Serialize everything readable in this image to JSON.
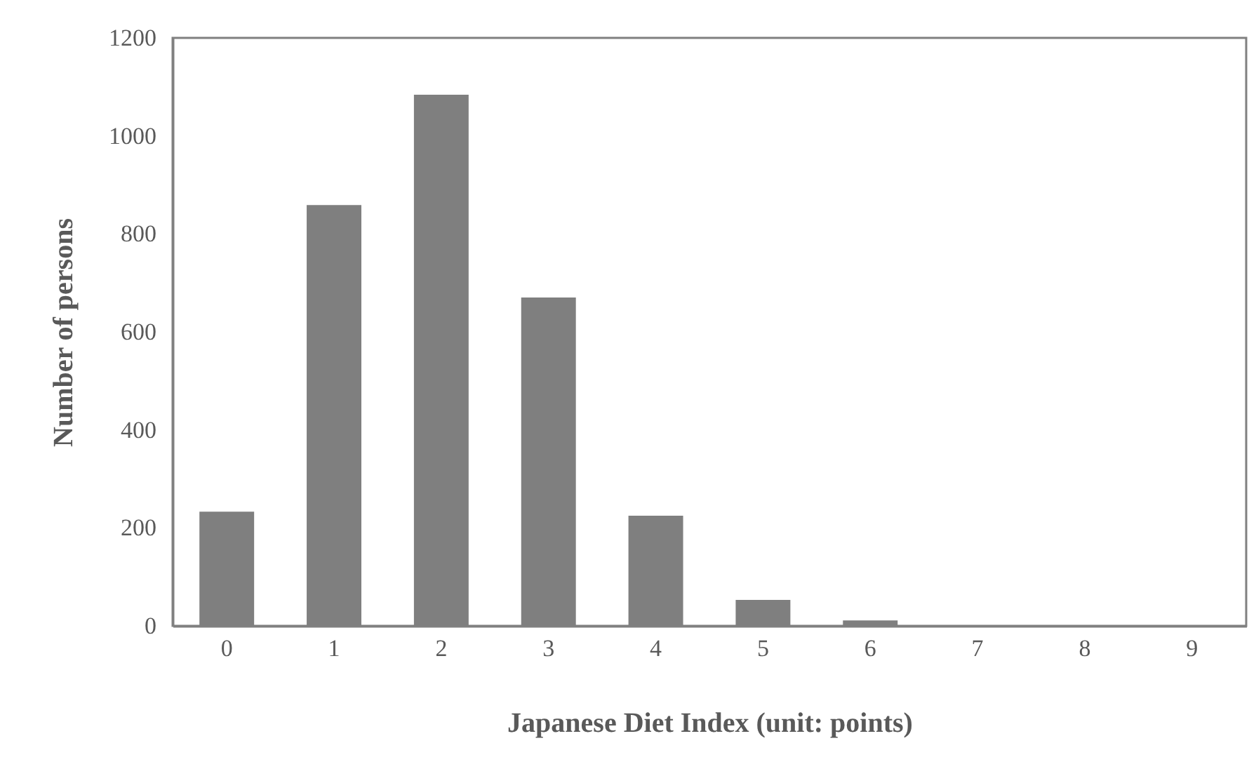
{
  "chart_data": {
    "type": "bar",
    "xlabel": "Japanese Diet Index (unit: points)",
    "ylabel": "Number of persons",
    "categories": [
      "0",
      "1",
      "2",
      "3",
      "4",
      "5",
      "6",
      "7",
      "8",
      "9"
    ],
    "values": [
      233,
      859,
      1084,
      670,
      225,
      53,
      11,
      0,
      0,
      0
    ],
    "color": "#7f7f7f",
    "ylim": [
      0,
      1200
    ],
    "yticks": [
      0,
      200,
      400,
      600,
      800,
      1000,
      1200
    ],
    "grid": false
  }
}
